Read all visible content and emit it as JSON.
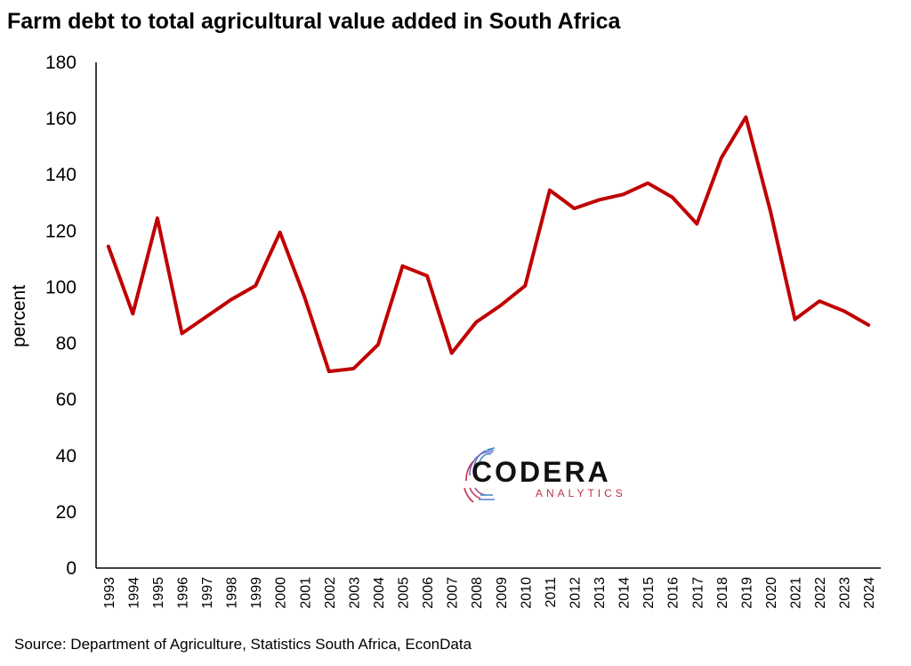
{
  "title": "Farm debt to total agricultural value added in South Africa",
  "source": "Source: Department of Agriculture, Statistics South Africa, EconData",
  "logo": {
    "name": "CODERA",
    "tagline": "ANALYTICS"
  },
  "colors": {
    "line": "#c00000",
    "axis": "#000000"
  },
  "chart_data": {
    "type": "line",
    "title": "Farm debt to total agricultural value added in South Africa",
    "xlabel": "",
    "ylabel": "percent",
    "ylim": [
      0,
      180
    ],
    "yticks": [
      0,
      20,
      40,
      60,
      80,
      100,
      120,
      140,
      160,
      180
    ],
    "grid": false,
    "legend": "none",
    "categories": [
      "1993",
      "1994",
      "1995",
      "1996",
      "1997",
      "1998",
      "1999",
      "2000",
      "2001",
      "2002",
      "2003",
      "2004",
      "2005",
      "2006",
      "2007",
      "2008",
      "2009",
      "2010",
      "2011",
      "2012",
      "2013",
      "2014",
      "2015",
      "2016",
      "2017",
      "2018",
      "2019",
      "2020",
      "2021",
      "2022",
      "2023",
      "2024"
    ],
    "series": [
      {
        "values": [
          114.5,
          90.5,
          124.5,
          83.5,
          89.5,
          95.5,
          100.5,
          119.5,
          96.5,
          70.0,
          71.0,
          79.5,
          107.5,
          104.0,
          76.5,
          87.5,
          93.5,
          100.5,
          134.5,
          128.0,
          131.0,
          133.0,
          137.0,
          132.0,
          122.5,
          146.0,
          160.5,
          127.0,
          88.5,
          95.0,
          91.5,
          86.5
        ],
        "color": "#c00000"
      }
    ]
  }
}
